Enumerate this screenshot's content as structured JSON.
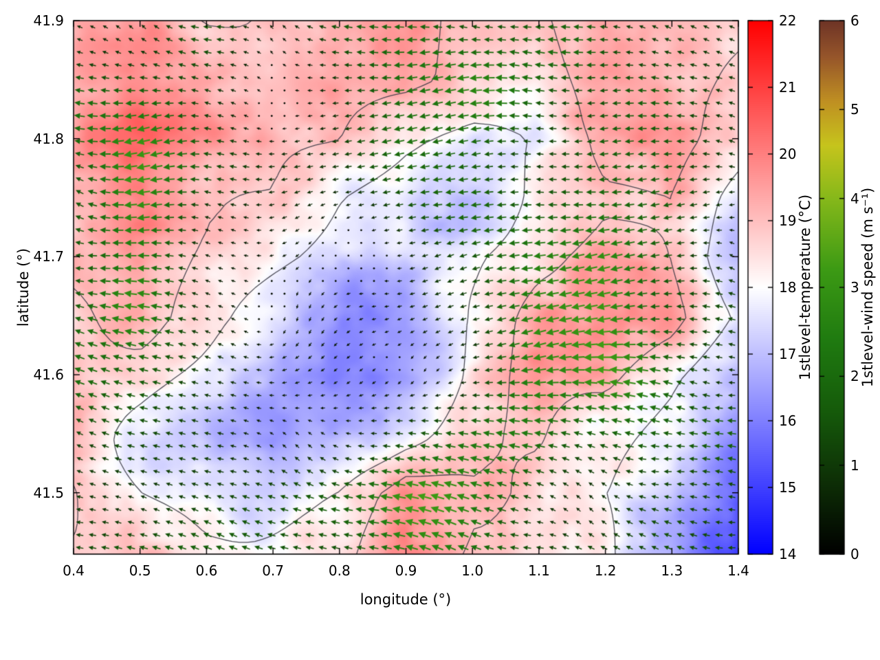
{
  "chart_data": {
    "type": "heatmap",
    "overlays": [
      "quiver",
      "contour"
    ],
    "title": "",
    "xlabel": "longitude (°)",
    "ylabel": "latitude (°)",
    "xlim": [
      0.4,
      1.4
    ],
    "ylim": [
      41.448,
      41.9
    ],
    "x_ticks": [
      "0.4",
      "0.5",
      "0.6",
      "0.7",
      "0.8",
      "0.9",
      "1.0",
      "1.1",
      "1.2",
      "1.3",
      "1.4"
    ],
    "y_ticks": [
      "41.5",
      "41.6",
      "41.7",
      "41.8",
      "41.9"
    ],
    "grid_x": [
      0.4,
      0.5,
      0.6,
      0.7,
      0.8,
      0.9,
      1.0,
      1.1,
      1.2,
      1.3,
      1.4
    ],
    "grid_y": [
      41.9,
      41.85,
      41.8,
      41.75,
      41.7,
      41.65,
      41.6,
      41.55,
      41.5,
      41.45
    ],
    "temperature_c": [
      [
        19.4,
        19.2,
        19.0,
        19.4,
        19.2,
        19.3,
        19.0,
        18.8,
        19.2,
        19.0,
        18.8
      ],
      [
        19.6,
        19.8,
        19.6,
        19.5,
        19.6,
        19.4,
        18.8,
        18.5,
        19.0,
        19.2,
        18.6
      ],
      [
        19.6,
        19.9,
        19.4,
        19.4,
        19.3,
        18.4,
        17.8,
        18.0,
        19.0,
        19.2,
        18.4
      ],
      [
        19.2,
        19.7,
        18.8,
        18.8,
        18.2,
        17.8,
        17.4,
        18.4,
        19.0,
        19.0,
        17.6
      ],
      [
        19.5,
        19.4,
        18.6,
        18.1,
        17.7,
        17.6,
        17.9,
        18.8,
        19.5,
        19.0,
        17.1
      ],
      [
        19.1,
        19.5,
        18.4,
        17.4,
        16.6,
        16.6,
        17.8,
        19.2,
        19.6,
        19.3,
        17.8
      ],
      [
        19.1,
        18.7,
        17.8,
        16.6,
        16.1,
        16.3,
        17.9,
        19.3,
        19.4,
        18.3,
        17.0
      ],
      [
        18.8,
        18.1,
        17.3,
        16.6,
        17.1,
        17.6,
        18.2,
        19.1,
        18.8,
        17.9,
        16.2
      ],
      [
        19.0,
        18.0,
        17.4,
        17.6,
        18.1,
        19.6,
        18.7,
        18.6,
        18.3,
        17.4,
        15.5
      ],
      [
        18.8,
        18.3,
        18.0,
        18.3,
        18.6,
        19.5,
        18.4,
        18.2,
        18.4,
        16.9,
        15.0
      ]
    ],
    "wind_u_ms": [
      [
        -1.2,
        -0.8,
        -1.0,
        -0.8,
        -1.5,
        -1.8,
        -1.2,
        -1.5,
        -1.2,
        -1.5,
        -1.2
      ],
      [
        -1.8,
        -1.5,
        -0.8,
        -0.6,
        -1.2,
        -2.2,
        -2.4,
        -1.8,
        -1.5,
        -1.8,
        -1.4
      ],
      [
        -1.5,
        -2.4,
        -1.0,
        -0.5,
        -1.0,
        -2.4,
        -2.2,
        -1.5,
        -2.2,
        -2.0,
        -1.4
      ],
      [
        -1.2,
        -2.6,
        -0.6,
        -0.4,
        -0.5,
        -1.5,
        -2.4,
        -1.8,
        -2.4,
        -2.2,
        -1.0
      ],
      [
        -1.2,
        -2.4,
        -0.6,
        -0.3,
        -0.3,
        -0.4,
        -1.2,
        -2.4,
        -2.8,
        -1.8,
        -1.0
      ],
      [
        -1.5,
        -2.0,
        -0.8,
        -0.3,
        -0.2,
        -0.2,
        -0.6,
        -2.2,
        -2.6,
        -1.5,
        -1.2
      ],
      [
        -1.2,
        -1.4,
        -0.6,
        -0.3,
        -0.2,
        -0.2,
        -0.4,
        -2.0,
        -2.4,
        -1.4,
        -1.0
      ],
      [
        -1.4,
        -1.0,
        -0.9,
        -0.6,
        -0.6,
        -1.2,
        -1.6,
        -2.0,
        -1.6,
        -1.4,
        -1.6
      ],
      [
        -1.0,
        -1.0,
        -1.2,
        -1.2,
        -1.8,
        -2.6,
        -2.0,
        -1.4,
        -1.0,
        -1.4,
        -1.4
      ],
      [
        -1.0,
        -1.1,
        -1.4,
        -1.2,
        -1.6,
        -2.2,
        -1.6,
        -1.0,
        -1.0,
        -1.4,
        -1.0
      ]
    ],
    "wind_v_ms": [
      [
        0.3,
        0.5,
        0.2,
        0.4,
        0.2,
        0.0,
        0.3,
        0.2,
        0.3,
        0.2,
        0.3
      ],
      [
        0.2,
        0.0,
        0.3,
        0.2,
        0.0,
        -0.2,
        0.0,
        0.2,
        0.0,
        0.2,
        0.0
      ],
      [
        0.0,
        -0.3,
        0.2,
        0.1,
        0.0,
        -0.3,
        -0.2,
        0.0,
        -0.3,
        0.0,
        0.2
      ],
      [
        0.3,
        -0.4,
        0.1,
        0.0,
        0.1,
        -0.2,
        -0.3,
        0.2,
        -0.2,
        -0.3,
        0.2
      ],
      [
        0.3,
        -0.3,
        0.1,
        0.0,
        0.0,
        0.0,
        -0.2,
        -0.3,
        -0.4,
        0.2,
        0.2
      ],
      [
        0.2,
        0.2,
        0.1,
        0.0,
        0.0,
        0.0,
        0.1,
        -0.3,
        -0.3,
        0.3,
        0.3
      ],
      [
        0.3,
        0.3,
        0.2,
        0.1,
        0.0,
        0.0,
        0.2,
        -0.2,
        0.2,
        0.3,
        0.3
      ],
      [
        0.4,
        0.3,
        0.3,
        0.2,
        0.3,
        0.4,
        0.4,
        0.2,
        0.3,
        0.3,
        0.4
      ],
      [
        0.3,
        0.3,
        0.4,
        0.4,
        0.6,
        0.8,
        0.6,
        0.4,
        0.3,
        0.4,
        0.4
      ],
      [
        0.3,
        0.3,
        0.4,
        0.4,
        0.6,
        0.8,
        0.5,
        0.3,
        0.3,
        0.3,
        0.3
      ]
    ],
    "contour_levels_c": [
      18,
      19
    ],
    "contour_color": "#3b3b46",
    "axis_color": "#000000",
    "background_color": "#ffffff",
    "colorbars": [
      {
        "label": "1stlevel-temperature (°C)",
        "min": 14,
        "max": 22,
        "ticks": [
          "14",
          "15",
          "16",
          "17",
          "18",
          "19",
          "20",
          "21",
          "22"
        ],
        "stops": [
          [
            14,
            "#0000ff"
          ],
          [
            18,
            "#ffffff"
          ],
          [
            22,
            "#ff0000"
          ]
        ]
      },
      {
        "label": "1stlevel-wind speed (m s⁻¹)",
        "min": 0,
        "max": 6,
        "ticks": [
          "0",
          "1",
          "2",
          "3",
          "4",
          "5",
          "6"
        ],
        "stops": [
          [
            0,
            "#000000"
          ],
          [
            0.8,
            "#0d2e06"
          ],
          [
            1.6,
            "#155a0a"
          ],
          [
            2.4,
            "#1f7a10"
          ],
          [
            3.2,
            "#3c9a14"
          ],
          [
            4.0,
            "#86b81a"
          ],
          [
            4.6,
            "#c6c41c"
          ],
          [
            5.1,
            "#bf8f22"
          ],
          [
            5.6,
            "#96552a"
          ],
          [
            6.0,
            "#6e3426"
          ]
        ]
      }
    ]
  }
}
